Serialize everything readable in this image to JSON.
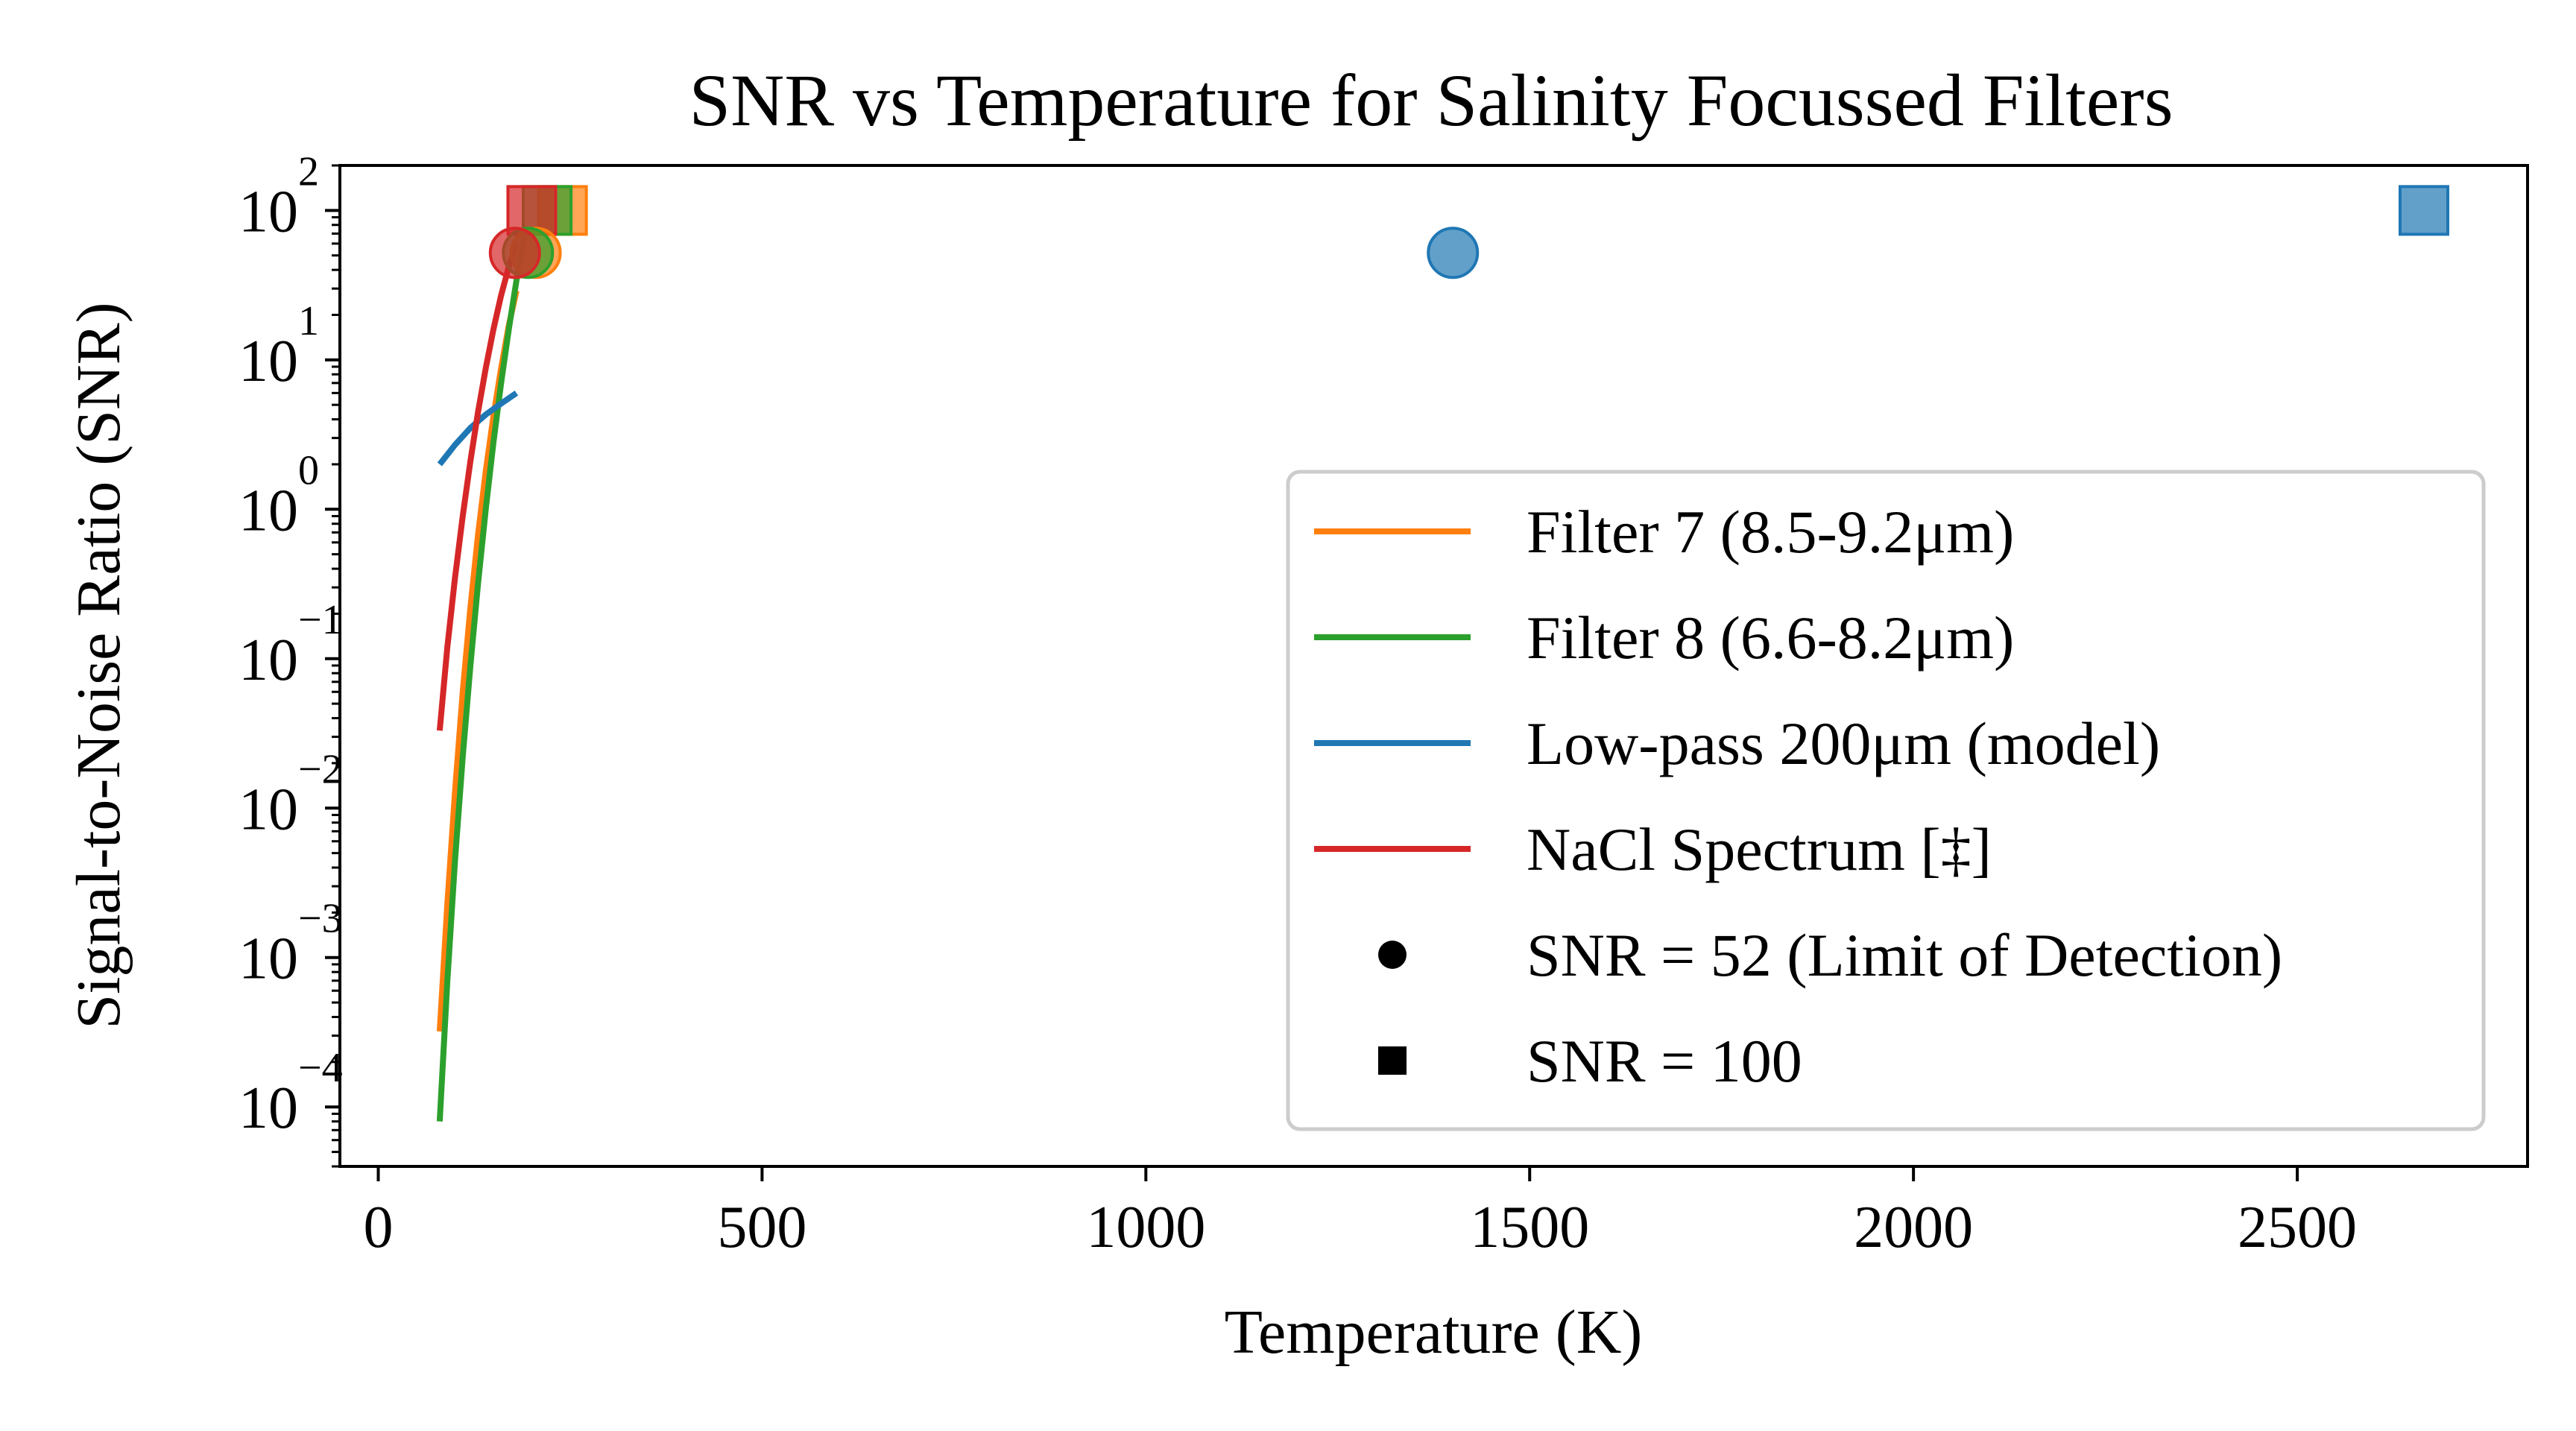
{
  "chart_data": {
    "type": "line",
    "title": "SNR vs Temperature for Salinity Focussed Filters",
    "xlabel": "Temperature (K)",
    "ylabel": "Signal-to-Noise Ratio (SNR)",
    "xlim": [
      -50,
      2800
    ],
    "yscale": "log",
    "ylim": [
      4e-05,
      200
    ],
    "x_ticks": [
      0,
      500,
      1000,
      1500,
      2000,
      2500
    ],
    "x_tick_labels": [
      "0",
      "500",
      "1000",
      "1500",
      "2000",
      "2500"
    ],
    "y_ticks": [
      0.0001,
      0.001,
      0.01,
      0.1,
      1,
      10,
      100
    ],
    "y_tick_labels": [
      {
        "base": "10",
        "exp": "−4"
      },
      {
        "base": "10",
        "exp": "−3"
      },
      {
        "base": "10",
        "exp": "−2"
      },
      {
        "base": "10",
        "exp": "−1"
      },
      {
        "base": "10",
        "exp": "0"
      },
      {
        "base": "10",
        "exp": "1"
      },
      {
        "base": "10",
        "exp": "2"
      }
    ],
    "grid": false,
    "legend_position": "lower-right",
    "series": [
      {
        "name": "Filter 7 (8.5-9.2μm)",
        "color": "#ff7f0e",
        "x": [
          80,
          90,
          100,
          110,
          120,
          130,
          140,
          150,
          160,
          170,
          180
        ],
        "y": [
          0.00032,
          0.0023,
          0.013,
          0.06,
          0.22,
          0.68,
          1.8,
          4.2,
          8.8,
          17,
          29
        ],
        "lod": {
          "x": 205,
          "y": 52
        },
        "snr100": {
          "x": 240,
          "y": 100
        }
      },
      {
        "name": "Filter 8 (6.6-8.2μm)",
        "color": "#2ca02c",
        "x": [
          80,
          90,
          100,
          110,
          120,
          130,
          140,
          150,
          160,
          170,
          180,
          190
        ],
        "y": [
          8e-05,
          0.0007,
          0.0045,
          0.022,
          0.09,
          0.32,
          1.0,
          2.8,
          7.0,
          16,
          34,
          66
        ],
        "lod": {
          "x": 195,
          "y": 52
        },
        "snr100": {
          "x": 220,
          "y": 100
        }
      },
      {
        "name": "Low-pass 200μm (model)",
        "color": "#1f77b4",
        "x": [
          80,
          100,
          120,
          140,
          160,
          180
        ],
        "y": [
          2.0,
          2.7,
          3.5,
          4.3,
          5.1,
          6.0
        ],
        "lod": {
          "x": 1400,
          "y": 52
        },
        "snr100": {
          "x": 2665,
          "y": 100
        }
      },
      {
        "name": "NaCl Spectrum [‡]",
        "color": "#d62728",
        "x": [
          80,
          90,
          100,
          110,
          120,
          130,
          140,
          150,
          160,
          170,
          180
        ],
        "y": [
          0.033,
          0.12,
          0.35,
          0.9,
          2.1,
          4.5,
          8.8,
          16,
          27,
          42,
          60
        ],
        "lod": {
          "x": 178,
          "y": 52
        },
        "snr100": {
          "x": 200,
          "y": 100
        }
      }
    ],
    "marker_legend": [
      {
        "name": "SNR = 52 (Limit of Detection)",
        "marker": "circle"
      },
      {
        "name": "SNR = 100",
        "marker": "square"
      }
    ]
  }
}
